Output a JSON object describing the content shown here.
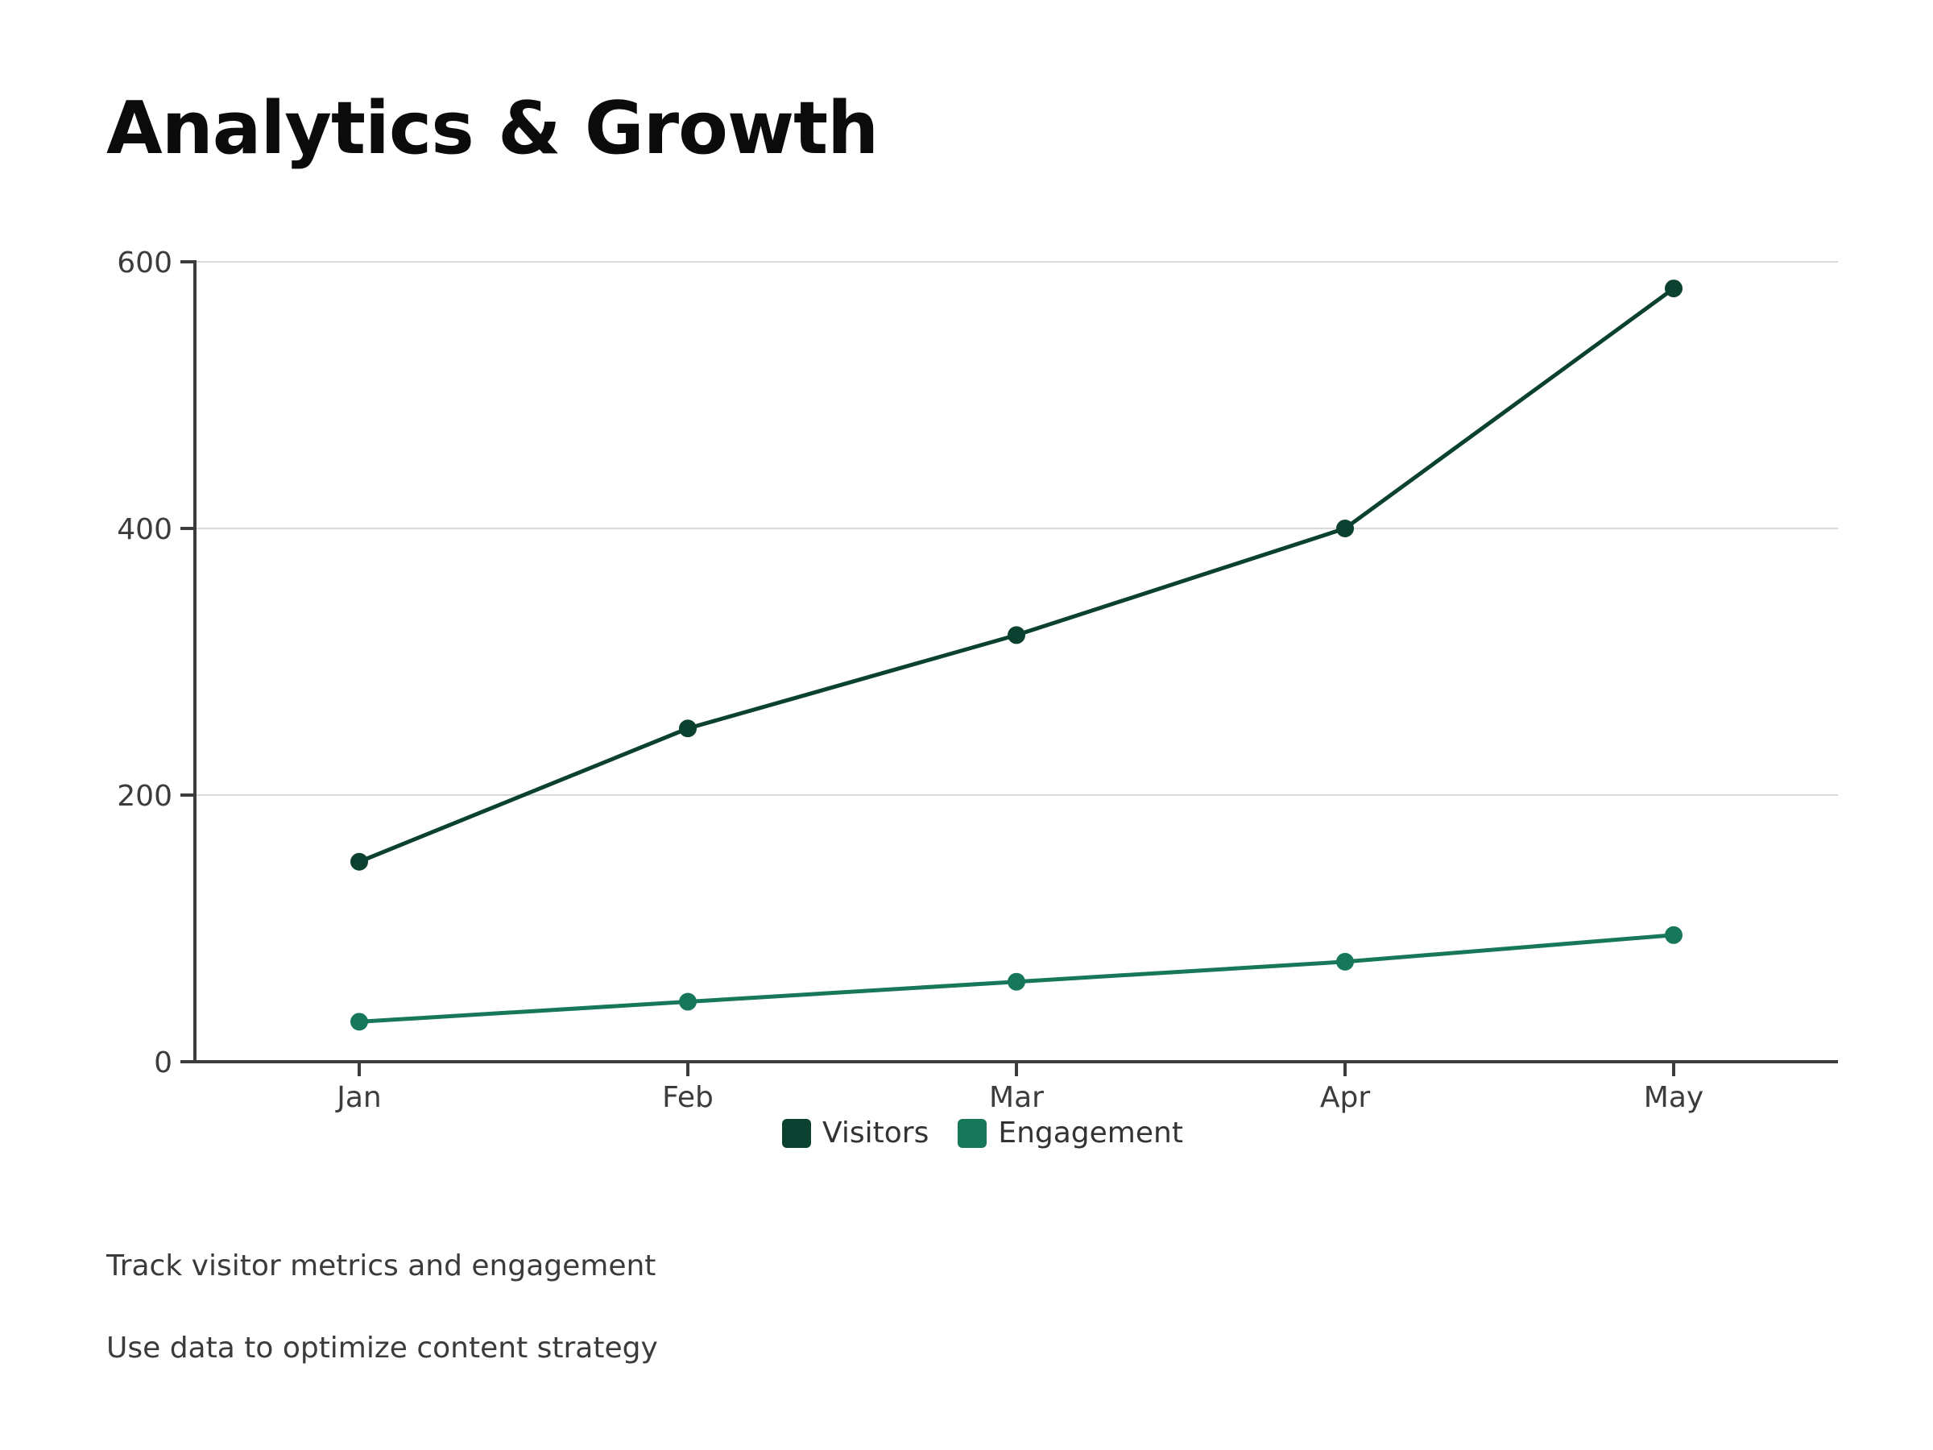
{
  "page": {
    "title": "Analytics & Growth",
    "notes": [
      "Track visitor metrics and engagement",
      "Use data to optimize content strategy"
    ]
  },
  "colors": {
    "visitors": "#0b4130",
    "engagement": "#17775a",
    "axis": "#3c3c3c",
    "grid": "#d9d9d9",
    "tick_text": "#3c3c3c"
  },
  "chart_data": {
    "type": "line",
    "title": "",
    "xlabel": "",
    "ylabel": "",
    "categories": [
      "Jan",
      "Feb",
      "Mar",
      "Apr",
      "May"
    ],
    "ylim": [
      0,
      600
    ],
    "yticks": [
      0,
      200,
      400,
      600
    ],
    "grid": true,
    "legend_position": "bottom-center",
    "series": [
      {
        "name": "Visitors",
        "color_key": "visitors",
        "values": [
          150,
          250,
          320,
          400,
          580
        ]
      },
      {
        "name": "Engagement",
        "color_key": "engagement",
        "values": [
          30,
          45,
          60,
          75,
          95
        ]
      }
    ]
  }
}
